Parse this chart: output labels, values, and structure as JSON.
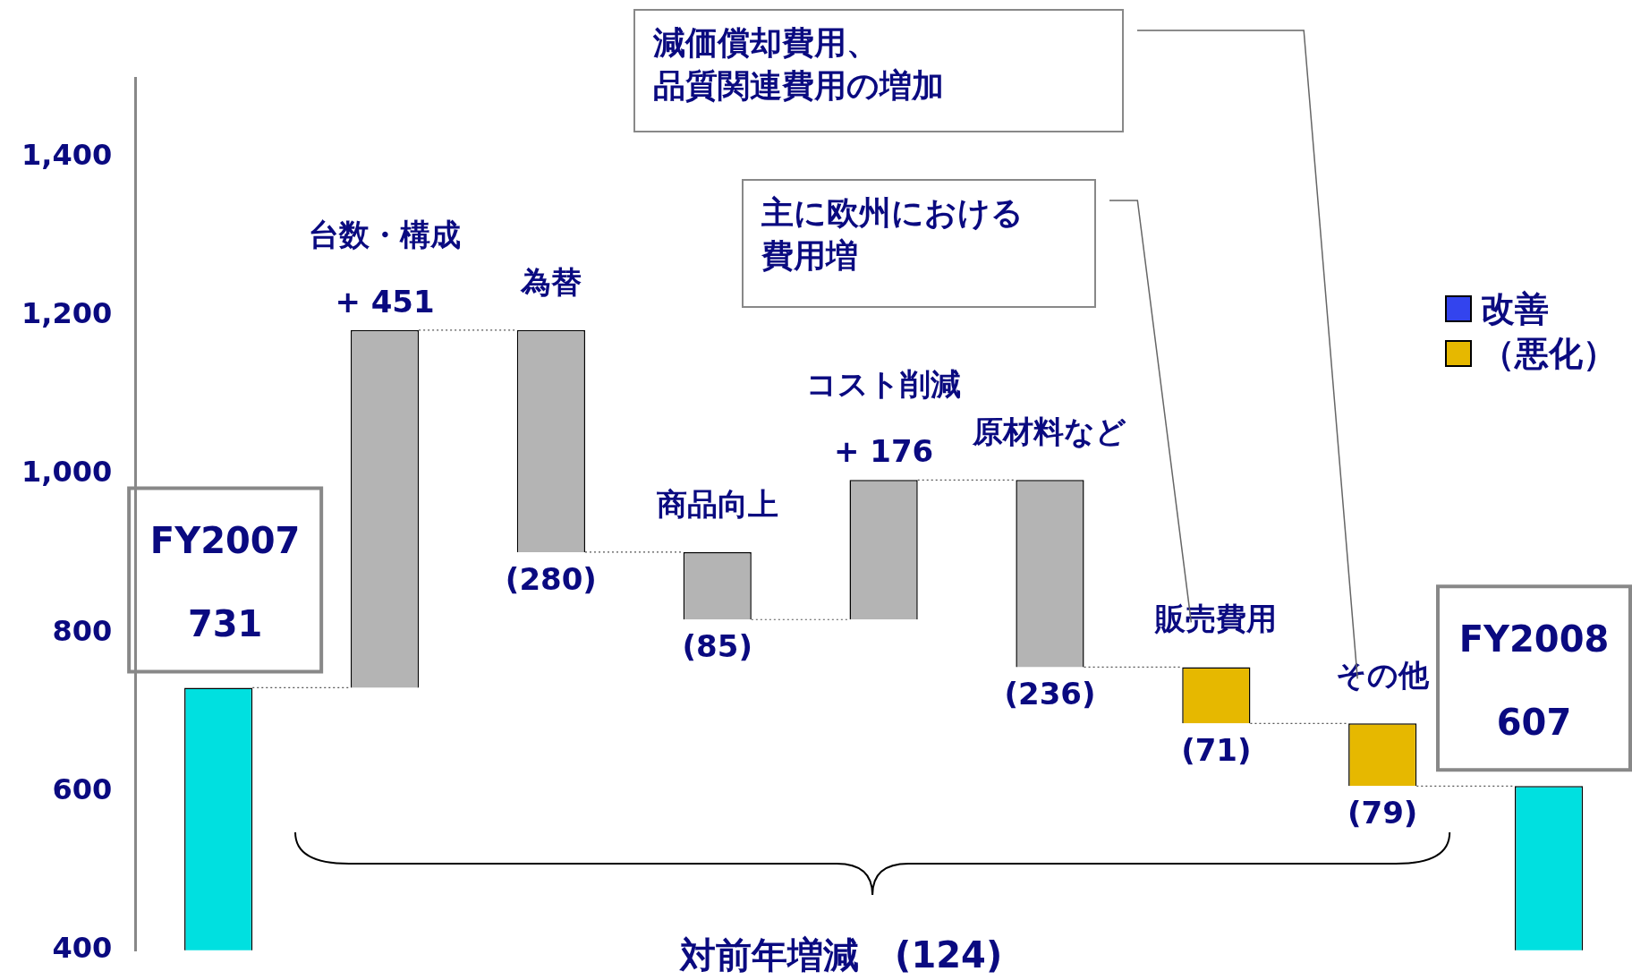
{
  "chart_data": {
    "type": "bar",
    "categories": [
      null,
      null,
      null,
      null,
      null,
      null,
      null,
      null,
      null
    ],
    "series": [
      {
        "colors": [
          "#00e0e0",
          "#b4b4b4",
          "#b4b4b4",
          "#b4b4b4",
          "#b4b4b4",
          "#b4b4b4",
          "#e6b800",
          "#e6b800",
          "#00e0e0"
        ],
        "base": [
          null,
          731,
          1182,
          902,
          817,
          993,
          757,
          686,
          null
        ],
        "values": [
          731,
          451,
          -280,
          -85,
          176,
          -236,
          -71,
          -79,
          607
        ],
        "value_labels": [
          "731",
          "+ 451",
          "(280)",
          "(85)",
          "+ 176",
          "(236)",
          "(71)",
          "(79)",
          "607"
        ]
      }
    ],
    "ylim": [
      400,
      1500
    ],
    "yticks": [
      400,
      600,
      800,
      {
        "value": 1000,
        "label": "1,000"
      },
      {
        "value": 1200,
        "label": "1,200"
      },
      {
        "value": 1400,
        "label": "1,400"
      }
    ],
    "grid": false,
    "annotations": [
      "減価償却費用、",
      "品質関連費用の増加",
      "主に欧州における",
      "費用増",
      "FY2007",
      "台数・構成",
      "為替",
      "商品向上",
      "コスト削減",
      "原材料など",
      "販売費用",
      "その他",
      "FY2008",
      "対前年増減　(124)",
      "改善",
      "（悪化）"
    ]
  }
}
